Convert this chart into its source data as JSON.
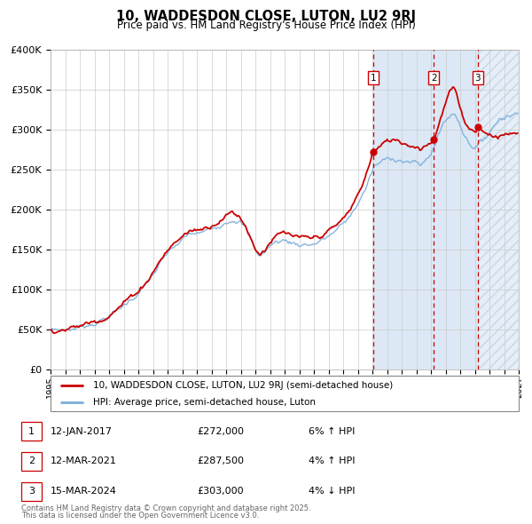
{
  "title": "10, WADDESDON CLOSE, LUTON, LU2 9RJ",
  "subtitle": "Price paid vs. HM Land Registry's House Price Index (HPI)",
  "property_label": "10, WADDESDON CLOSE, LUTON, LU2 9RJ (semi-detached house)",
  "hpi_label": "HPI: Average price, semi-detached house, Luton",
  "footer1": "Contains HM Land Registry data © Crown copyright and database right 2025.",
  "footer2": "This data is licensed under the Open Government Licence v3.0.",
  "sales": [
    {
      "num": 1,
      "date": "12-JAN-2017",
      "price": 272000,
      "pct": "6%",
      "dir": "↑"
    },
    {
      "num": 2,
      "date": "12-MAR-2021",
      "price": 287500,
      "pct": "4%",
      "dir": "↑"
    },
    {
      "num": 3,
      "date": "15-MAR-2024",
      "price": 303000,
      "pct": "4%",
      "dir": "↓"
    }
  ],
  "sale_years": [
    2017.04,
    2021.19,
    2024.2
  ],
  "sale_prices": [
    272000,
    287500,
    303000
  ],
  "ylim": [
    0,
    400000
  ],
  "xlim_start": 1995,
  "xlim_end": 2027,
  "property_color": "#cc0000",
  "hpi_color": "#7aaddb",
  "vline_color": "#cc0000",
  "sale_box_color": "#cc0000",
  "shade_color": "#dce8f5",
  "hatch_color": "#c5d8e8",
  "background_color": "#ffffff"
}
